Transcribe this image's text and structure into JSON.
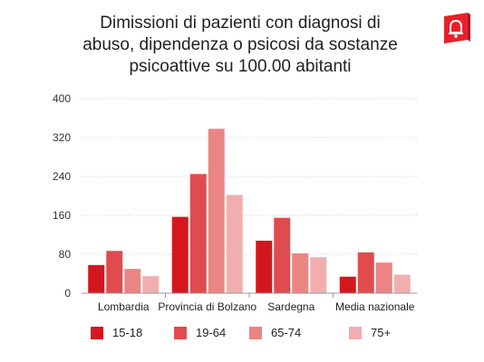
{
  "title_lines": [
    "Dimissioni di pazienti con diagnosi di",
    "abuso, dipendenza o psicosi da sostanze",
    "psicoattive su 100.00 abitanti"
  ],
  "logo": {
    "icon": "bell-book-icon",
    "color": "#e8202a"
  },
  "chart_data": {
    "type": "bar",
    "title": "Dimissioni di pazienti con diagnosi di abuso, dipendenza o psicosi da sostanze psicoattive su 100.00 abitanti",
    "categories": [
      "Lombardia",
      "Provincia di Bolzano",
      "Sardegna",
      "Media nazionale"
    ],
    "series": [
      {
        "name": "15-18",
        "color": "#d4171f",
        "values": [
          58,
          157,
          108,
          34
        ]
      },
      {
        "name": "19-64",
        "color": "#e04b4f",
        "values": [
          87,
          245,
          155,
          84
        ]
      },
      {
        "name": "65-74",
        "color": "#ea8583",
        "values": [
          50,
          338,
          82,
          63
        ]
      },
      {
        "name": "75+",
        "color": "#f2aeae",
        "values": [
          35,
          202,
          74,
          38
        ]
      }
    ],
    "yticks": [
      0,
      80,
      160,
      240,
      320,
      400
    ],
    "ylim": [
      0,
      400
    ],
    "xlabel": "",
    "ylabel": "",
    "grid": true,
    "legend": "bottom"
  }
}
